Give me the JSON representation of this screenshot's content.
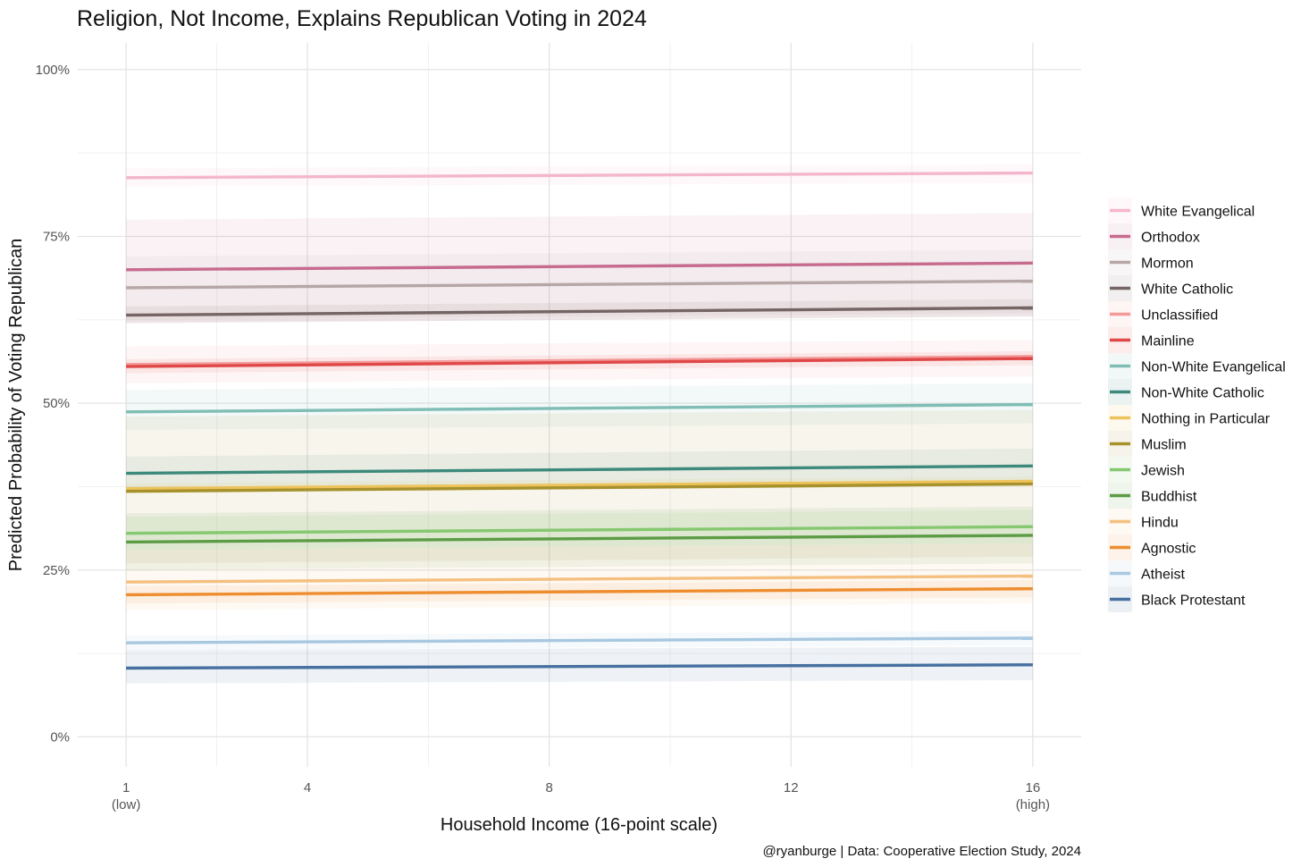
{
  "chart_data": {
    "type": "line",
    "title": "Religion, Not Income, Explains Republican Voting in 2024",
    "xlabel": "Household Income (16-point scale)",
    "ylabel": "Predicted Probability of Voting Republican",
    "caption": "@ryanburge | Data: Cooperative Election Study, 2024",
    "xlim": [
      0.2,
      16.8
    ],
    "ylim": [
      -0.045,
      1.04
    ],
    "x_ticks": [
      {
        "value": 1,
        "label": "1",
        "sublabel": "(low)"
      },
      {
        "value": 4,
        "label": "4",
        "sublabel": ""
      },
      {
        "value": 8,
        "label": "8",
        "sublabel": ""
      },
      {
        "value": 12,
        "label": "12",
        "sublabel": ""
      },
      {
        "value": 16,
        "label": "16",
        "sublabel": "(high)"
      }
    ],
    "y_ticks": [
      {
        "value": 0,
        "label": "0%"
      },
      {
        "value": 0.25,
        "label": "25%"
      },
      {
        "value": 0.5,
        "label": "50%"
      },
      {
        "value": 0.75,
        "label": "75%"
      },
      {
        "value": 1.0,
        "label": "100%"
      }
    ],
    "x_minor": [
      2.5,
      6,
      10,
      14
    ],
    "y_minor": [
      0.125,
      0.375,
      0.625,
      0.875
    ],
    "grid": true,
    "legend_position": "right",
    "series": [
      {
        "name": "White Evangelical",
        "color": "#f4b6cd",
        "x": [
          1,
          16
        ],
        "y": [
          0.838,
          0.845
        ],
        "ci_low": [
          0.825,
          0.83
        ],
        "ci_high": [
          0.852,
          0.858
        ]
      },
      {
        "name": "Orthodox",
        "color": "#c76b8e",
        "x": [
          1,
          16
        ],
        "y": [
          0.7,
          0.71
        ],
        "ci_low": [
          0.62,
          0.63
        ],
        "ci_high": [
          0.775,
          0.785
        ]
      },
      {
        "name": "Mormon",
        "color": "#b6a6a6",
        "x": [
          1,
          16
        ],
        "y": [
          0.673,
          0.683
        ],
        "ci_low": [
          0.625,
          0.635
        ],
        "ci_high": [
          0.72,
          0.73
        ]
      },
      {
        "name": "White Catholic",
        "color": "#756565",
        "x": [
          1,
          16
        ],
        "y": [
          0.632,
          0.643
        ],
        "ci_low": [
          0.62,
          0.63
        ],
        "ci_high": [
          0.645,
          0.656
        ]
      },
      {
        "name": "Unclassified",
        "color": "#f39a9a",
        "x": [
          1,
          16
        ],
        "y": [
          0.558,
          0.57
        ],
        "ci_low": [
          0.53,
          0.54
        ],
        "ci_high": [
          0.585,
          0.595
        ]
      },
      {
        "name": "Mainline",
        "color": "#e04848",
        "x": [
          1,
          16
        ],
        "y": [
          0.555,
          0.567
        ],
        "ci_low": [
          0.545,
          0.557
        ],
        "ci_high": [
          0.566,
          0.578
        ]
      },
      {
        "name": "Non-White Evangelical",
        "color": "#7fbdb5",
        "x": [
          1,
          16
        ],
        "y": [
          0.487,
          0.498
        ],
        "ci_low": [
          0.46,
          0.47
        ],
        "ci_high": [
          0.52,
          0.53
        ]
      },
      {
        "name": "Non-White Catholic",
        "color": "#3d8a7c",
        "x": [
          1,
          16
        ],
        "y": [
          0.395,
          0.406
        ],
        "ci_low": [
          0.37,
          0.38
        ],
        "ci_high": [
          0.42,
          0.432
        ]
      },
      {
        "name": "Nothing in Particular",
        "color": "#eec35b",
        "x": [
          1,
          16
        ],
        "y": [
          0.372,
          0.383
        ],
        "ci_low": [
          0.365,
          0.376
        ],
        "ci_high": [
          0.38,
          0.39
        ]
      },
      {
        "name": "Muslim",
        "color": "#a6912d",
        "x": [
          1,
          16
        ],
        "y": [
          0.368,
          0.379
        ],
        "ci_low": [
          0.26,
          0.27
        ],
        "ci_high": [
          0.48,
          0.49
        ]
      },
      {
        "name": "Jewish",
        "color": "#86c870",
        "x": [
          1,
          16
        ],
        "y": [
          0.305,
          0.315
        ],
        "ci_low": [
          0.28,
          0.29
        ],
        "ci_high": [
          0.33,
          0.34
        ]
      },
      {
        "name": "Buddhist",
        "color": "#5c9c45",
        "x": [
          1,
          16
        ],
        "y": [
          0.292,
          0.302
        ],
        "ci_low": [
          0.25,
          0.26
        ],
        "ci_high": [
          0.335,
          0.345
        ]
      },
      {
        "name": "Hindu",
        "color": "#f5c07f",
        "x": [
          1,
          16
        ],
        "y": [
          0.232,
          0.241
        ],
        "ci_low": [
          0.19,
          0.2
        ],
        "ci_high": [
          0.28,
          0.29
        ]
      },
      {
        "name": "Agnostic",
        "color": "#ee8d2f",
        "x": [
          1,
          16
        ],
        "y": [
          0.213,
          0.222
        ],
        "ci_low": [
          0.2,
          0.209
        ],
        "ci_high": [
          0.226,
          0.235
        ]
      },
      {
        "name": "Atheist",
        "color": "#a7c8e0",
        "x": [
          1,
          16
        ],
        "y": [
          0.141,
          0.148
        ],
        "ci_low": [
          0.13,
          0.137
        ],
        "ci_high": [
          0.152,
          0.159
        ]
      },
      {
        "name": "Black Protestant",
        "color": "#4670a0",
        "x": [
          1,
          16
        ],
        "y": [
          0.103,
          0.108
        ],
        "ci_low": [
          0.08,
          0.085
        ],
        "ci_high": [
          0.13,
          0.135
        ]
      }
    ]
  }
}
